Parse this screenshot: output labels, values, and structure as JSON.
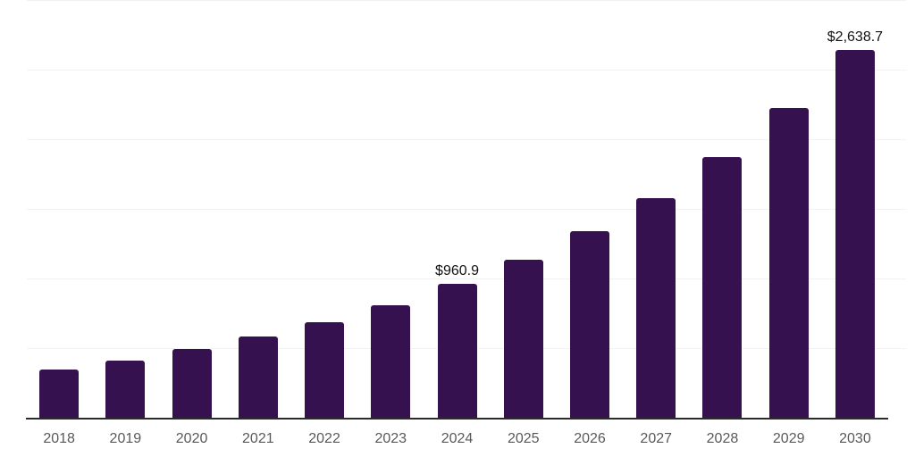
{
  "chart_data": {
    "type": "bar",
    "title": "",
    "xlabel": "",
    "ylabel": "",
    "categories": [
      "2018",
      "2019",
      "2020",
      "2021",
      "2022",
      "2023",
      "2024",
      "2025",
      "2026",
      "2027",
      "2028",
      "2029",
      "2030"
    ],
    "values": [
      348,
      413,
      492,
      582,
      684,
      808,
      960.9,
      1135,
      1340,
      1580,
      1875,
      2222,
      2638.7
    ],
    "data_labels": [
      "",
      "",
      "",
      "",
      "",
      "",
      "$960.9",
      "",
      "",
      "",
      "",
      "",
      "$2,638.7"
    ],
    "ylim": [
      0,
      3000
    ],
    "gridline_interval": 500,
    "grid": true,
    "legend_position": "none",
    "y_axis_labels_visible": false,
    "colors": {
      "bar": "#36114f",
      "axis_line": "#2b2b2b",
      "gridline": "#f2f2f2",
      "tick_label": "#595959",
      "data_label": "#111111",
      "background": "#ffffff"
    }
  }
}
